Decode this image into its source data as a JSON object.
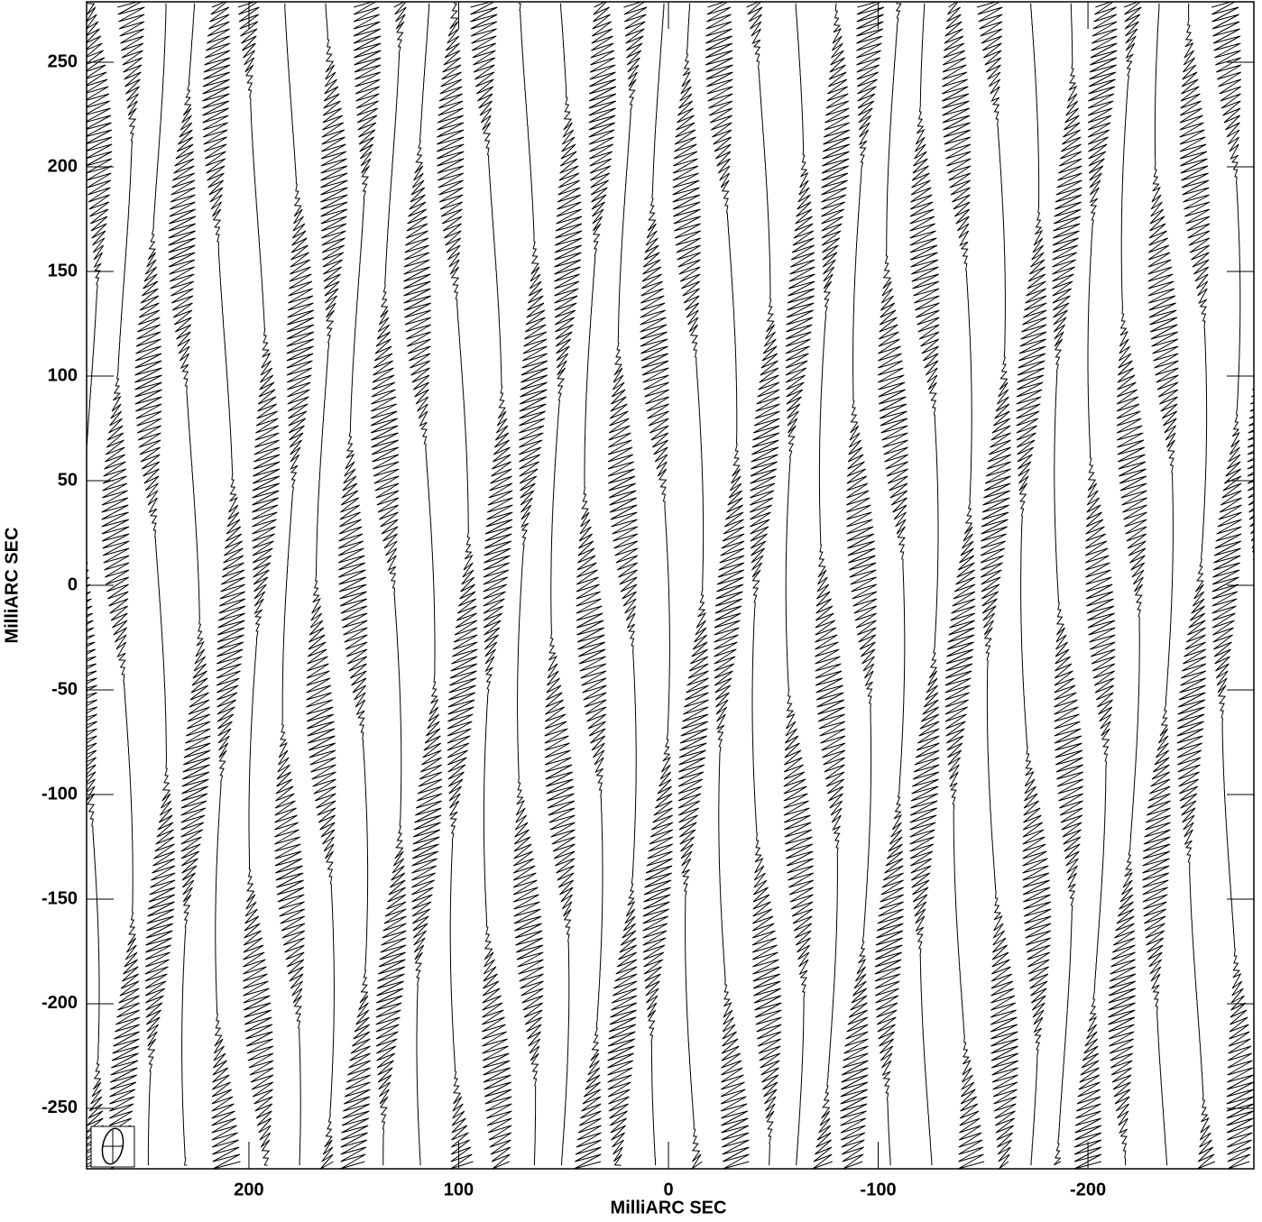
{
  "chart_data": {
    "type": "contour",
    "x_label": "MilliARC SEC",
    "y_label": "MilliARC SEC",
    "xlim": [
      277.4,
      -279.1
    ],
    "ylim": [
      -278.9,
      278.9
    ],
    "xticks": [
      200,
      100,
      0,
      -100,
      -200
    ],
    "yticks": [
      250,
      200,
      150,
      100,
      50,
      0,
      -50,
      -100,
      -150,
      -200,
      -250
    ],
    "color": "#000000"
  }
}
